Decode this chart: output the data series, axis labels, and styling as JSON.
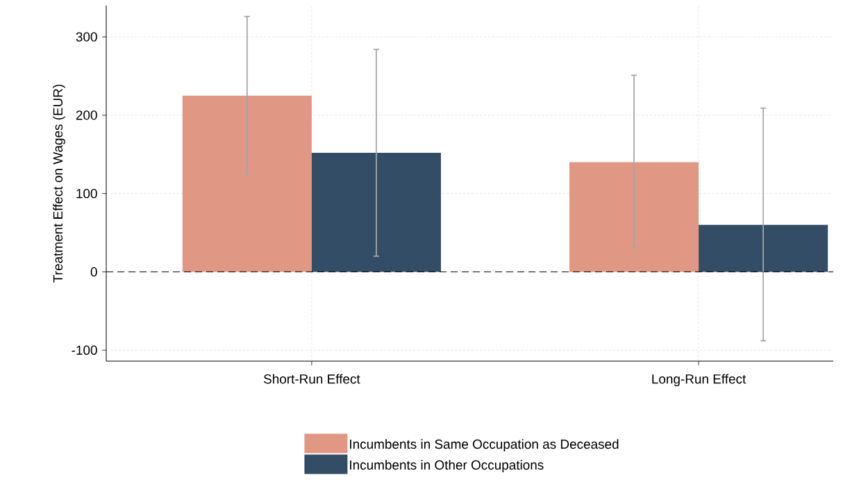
{
  "chart_data": {
    "type": "bar",
    "categories": [
      "Short-Run Effect",
      "Long-Run Effect"
    ],
    "ylabel": "Treatment Effect on Wages (EUR)",
    "ylim": [
      -114,
      340
    ],
    "yticks": [
      -100,
      0,
      100,
      200,
      300
    ],
    "grid": true,
    "legend": "bottom",
    "series": [
      {
        "name": "Incumbents in Same Occupation as Deceased",
        "color": "#e09885",
        "values": [
          225,
          140
        ],
        "errors": [
          [
            123,
            326
          ],
          [
            31,
            251
          ]
        ]
      },
      {
        "name": "Incumbents in Other Occupations",
        "color": "#344d66",
        "values": [
          152,
          60
        ],
        "errors": [
          [
            20,
            284
          ],
          [
            -88,
            209
          ]
        ]
      }
    ],
    "ref_lines": [
      {
        "axis": "y",
        "value": 0,
        "color": "#000000",
        "line_style": "dashed"
      }
    ]
  }
}
